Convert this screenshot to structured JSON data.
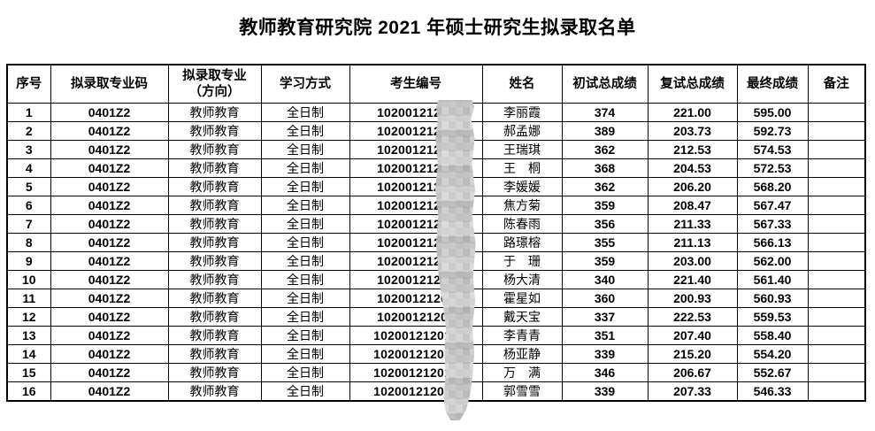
{
  "page": {
    "title": "教师教育研究院 2021 年硕士研究生拟录取名单",
    "colors": {
      "background": "#ffffff",
      "text": "#000000",
      "table_border": "#000000",
      "redaction_mosaic_grays": [
        "#b9b9b9",
        "#c7c7c7",
        "#d6d6d6",
        "#e2e2e2"
      ]
    }
  },
  "table": {
    "columns": [
      {
        "key": "no",
        "label": "序号"
      },
      {
        "key": "code",
        "label": "拟录取专业码"
      },
      {
        "key": "major",
        "label": "拟录取专业\n（方向）"
      },
      {
        "key": "mode",
        "label": "学习方式"
      },
      {
        "key": "candidate",
        "label": "考生编号"
      },
      {
        "key": "name",
        "label": "姓名"
      },
      {
        "key": "initial",
        "label": "初试总成绩"
      },
      {
        "key": "retest",
        "label": "复试总成绩"
      },
      {
        "key": "final",
        "label": "最终成绩"
      },
      {
        "key": "note",
        "label": "备注"
      }
    ],
    "redaction": {
      "masked_column": "考生编号",
      "style": "pixelated-mosaic-over-last-digits"
    },
    "rows": [
      {
        "no": "1",
        "code": "0401Z2",
        "major": "教师教育",
        "mode": "全日制",
        "candidate": "10200121201",
        "name": "李丽霞",
        "initial": "374",
        "retest": "221.00",
        "final": "595.00",
        "note": ""
      },
      {
        "no": "2",
        "code": "0401Z2",
        "major": "教师教育",
        "mode": "全日制",
        "candidate": "10200121201",
        "name": "郝孟娜",
        "initial": "389",
        "retest": "203.73",
        "final": "592.73",
        "note": ""
      },
      {
        "no": "3",
        "code": "0401Z2",
        "major": "教师教育",
        "mode": "全日制",
        "candidate": "10200121201",
        "name": "王瑞琪",
        "initial": "362",
        "retest": "212.53",
        "final": "574.53",
        "note": ""
      },
      {
        "no": "4",
        "code": "0401Z2",
        "major": "教师教育",
        "mode": "全日制",
        "candidate": "10200121201",
        "name": "王　桐",
        "initial": "368",
        "retest": "204.53",
        "final": "572.53",
        "note": ""
      },
      {
        "no": "5",
        "code": "0401Z2",
        "major": "教师教育",
        "mode": "全日制",
        "candidate": "10200121201",
        "name": "李媛媛",
        "initial": "362",
        "retest": "206.20",
        "final": "568.20",
        "note": ""
      },
      {
        "no": "6",
        "code": "0401Z2",
        "major": "教师教育",
        "mode": "全日制",
        "candidate": "10200121201",
        "name": "焦方菊",
        "initial": "359",
        "retest": "208.47",
        "final": "567.47",
        "note": ""
      },
      {
        "no": "7",
        "code": "0401Z2",
        "major": "教师教育",
        "mode": "全日制",
        "candidate": "10200121201",
        "name": "陈春雨",
        "initial": "356",
        "retest": "211.33",
        "final": "567.33",
        "note": ""
      },
      {
        "no": "8",
        "code": "0401Z2",
        "major": "教师教育",
        "mode": "全日制",
        "candidate": "10200121201",
        "name": "路璟榕",
        "initial": "355",
        "retest": "211.13",
        "final": "566.13",
        "note": ""
      },
      {
        "no": "9",
        "code": "0401Z2",
        "major": "教师教育",
        "mode": "全日制",
        "candidate": "10200121201",
        "name": "于　珊",
        "initial": "359",
        "retest": "203.00",
        "final": "562.00",
        "note": ""
      },
      {
        "no": "10",
        "code": "0401Z2",
        "major": "教师教育",
        "mode": "全日制",
        "candidate": "10200121201",
        "name": "杨大清",
        "initial": "340",
        "retest": "221.40",
        "final": "561.40",
        "note": ""
      },
      {
        "no": "11",
        "code": "0401Z2",
        "major": "教师教育",
        "mode": "全日制",
        "candidate": "10200121201",
        "name": "霍星如",
        "initial": "360",
        "retest": "200.93",
        "final": "560.93",
        "note": ""
      },
      {
        "no": "12",
        "code": "0401Z2",
        "major": "教师教育",
        "mode": "全日制",
        "candidate": "10200121201",
        "name": "戴天宝",
        "initial": "337",
        "retest": "222.53",
        "final": "559.53",
        "note": ""
      },
      {
        "no": "13",
        "code": "0401Z2",
        "major": "教师教育",
        "mode": "全日制",
        "candidate": "102001212019",
        "name": "李青青",
        "initial": "351",
        "retest": "207.40",
        "final": "558.40",
        "note": ""
      },
      {
        "no": "14",
        "code": "0401Z2",
        "major": "教师教育",
        "mode": "全日制",
        "candidate": "102001212019",
        "name": "杨亚静",
        "initial": "339",
        "retest": "215.20",
        "final": "554.20",
        "note": ""
      },
      {
        "no": "15",
        "code": "0401Z2",
        "major": "教师教育",
        "mode": "全日制",
        "candidate": "102001212019",
        "name": "万　满",
        "initial": "346",
        "retest": "206.67",
        "final": "552.67",
        "note": ""
      },
      {
        "no": "16",
        "code": "0401Z2",
        "major": "教师教育",
        "mode": "全日制",
        "candidate": "102001212019",
        "name": "郭雪雪",
        "initial": "339",
        "retest": "207.33",
        "final": "546.33",
        "note": ""
      }
    ]
  }
}
